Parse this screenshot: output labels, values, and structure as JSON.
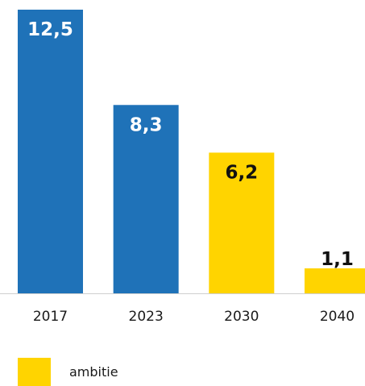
{
  "chart_data": {
    "type": "bar",
    "categories": [
      "2017",
      "2023",
      "2030",
      "2040"
    ],
    "values": [
      12.5,
      8.3,
      6.2,
      1.1
    ],
    "value_labels": [
      "12,5",
      "8,3",
      "6,2",
      "1,1"
    ],
    "bar_colors": [
      "#1f72b8",
      "#1f72b8",
      "#ffd400",
      "#ffd400"
    ],
    "label_colors": [
      "#ffffff",
      "#ffffff",
      "#111111",
      "#111111"
    ],
    "ylim": [
      0,
      12.5
    ],
    "grid": false,
    "legend": {
      "placement": "bottom-left",
      "entries": [
        {
          "label": "ambitie",
          "color": "#ffd400"
        }
      ]
    }
  }
}
